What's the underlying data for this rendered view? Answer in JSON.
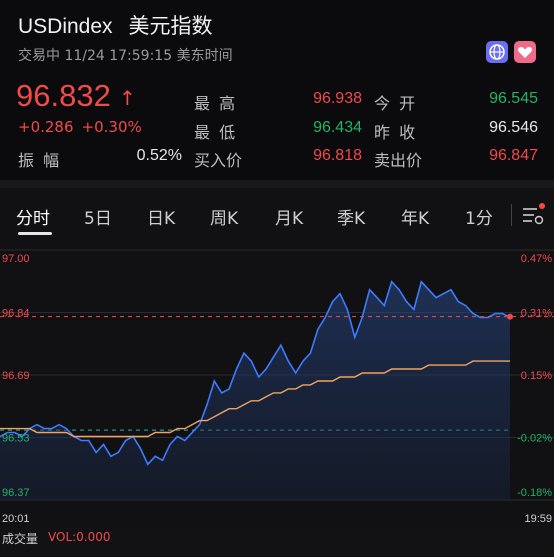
{
  "header": {
    "symbol": "USDindex",
    "name": "美元指数",
    "status": "交易中 11/24 17:59:15 美东时间",
    "price": "96.832",
    "change": "+0.286",
    "change_pct": "+0.30%",
    "stats": [
      {
        "label": "最 高",
        "value": "96.938",
        "color": "red"
      },
      {
        "label": "今 开",
        "value": "96.545",
        "color": "green"
      },
      {
        "label": "最 低",
        "value": "96.434",
        "color": "green"
      },
      {
        "label": "昨 收",
        "value": "96.546",
        "color": "white"
      },
      {
        "label": "振 幅",
        "value": "0.52%",
        "color": "white"
      },
      {
        "label": "买入价",
        "value": "96.818",
        "color": "red"
      },
      {
        "label": "卖出价",
        "value": "96.847",
        "color": "red"
      }
    ],
    "icons": [
      "globe-icon",
      "heart-icon"
    ]
  },
  "tabs": [
    "分时",
    "5日",
    "日K",
    "周K",
    "月K",
    "季K",
    "年K",
    "1分"
  ],
  "tabs_extra_icon": "settings-menu-icon",
  "chart_data": {
    "type": "line",
    "y_ticks_left": [
      "97.00",
      "96.84",
      "96.69",
      "96.53",
      "96.37"
    ],
    "y_ticks_right": [
      "0.47%",
      "0.31%",
      "0.15%",
      "-0.02%",
      "-0.18%"
    ],
    "x_ticks": [
      "20:01",
      "19:59"
    ],
    "ylim": [
      96.37,
      97.0
    ],
    "prev_close": 96.546,
    "current": 96.832,
    "series": [
      {
        "values": [
          96.53,
          96.54,
          96.54,
          96.53,
          96.55,
          96.56,
          96.55,
          96.55,
          96.56,
          96.55,
          96.53,
          96.52,
          96.52,
          96.49,
          96.51,
          96.48,
          96.49,
          96.52,
          96.53,
          96.5,
          96.46,
          96.48,
          96.47,
          96.51,
          96.53,
          96.52,
          96.54,
          96.56,
          96.61,
          96.67,
          96.64,
          96.65,
          96.7,
          96.74,
          96.72,
          96.68,
          96.7,
          96.73,
          96.76,
          96.72,
          96.69,
          96.72,
          96.74,
          96.8,
          96.83,
          96.87,
          96.89,
          96.85,
          96.78,
          96.83,
          96.9,
          96.88,
          96.86,
          96.92,
          96.9,
          96.87,
          96.85,
          96.92,
          96.9,
          96.88,
          96.89,
          96.9,
          96.87,
          96.86,
          96.84,
          96.83,
          96.83,
          96.84,
          96.84,
          96.83
        ]
      },
      {
        "values": [
          96.55,
          96.55,
          96.55,
          96.55,
          96.55,
          96.54,
          96.54,
          96.54,
          96.54,
          96.54,
          96.53,
          96.53,
          96.53,
          96.53,
          96.53,
          96.53,
          96.53,
          96.53,
          96.53,
          96.53,
          96.53,
          96.54,
          96.54,
          96.54,
          96.55,
          96.55,
          96.56,
          96.57,
          96.57,
          96.58,
          96.59,
          96.6,
          96.6,
          96.61,
          96.62,
          96.62,
          96.63,
          96.64,
          96.64,
          96.65,
          96.65,
          96.66,
          96.66,
          96.67,
          96.67,
          96.67,
          96.68,
          96.68,
          96.68,
          96.69,
          96.69,
          96.69,
          96.69,
          96.7,
          96.7,
          96.7,
          96.7,
          96.7,
          96.71,
          96.71,
          96.71,
          96.71,
          96.71,
          96.71,
          96.72,
          96.72,
          96.72,
          96.72,
          96.72,
          96.72
        ]
      }
    ]
  },
  "footer": {
    "label": "成交量",
    "vol": "VOL:0.000"
  },
  "colors": {
    "up": "#f04a4a",
    "down": "#26b26a",
    "line": "#3d7bff",
    "avg": "#f2a35e",
    "bg": "#111114"
  }
}
